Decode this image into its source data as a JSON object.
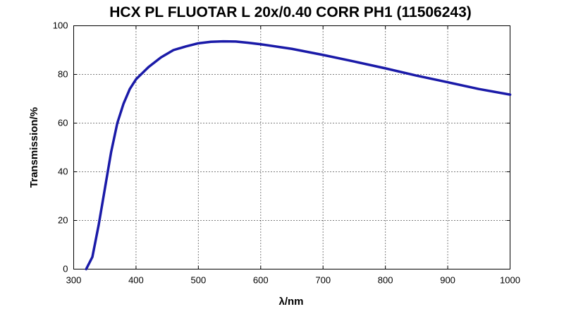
{
  "chart_data": {
    "type": "line",
    "title": "HCX PL FLUOTAR L 20x/0.40 CORR PH1 (11506243)",
    "xlabel": "λ/nm",
    "ylabel": "Transmission/%",
    "xlim": [
      300,
      1000
    ],
    "ylim": [
      0,
      100
    ],
    "xticks": [
      "300",
      "400",
      "500",
      "600",
      "700",
      "800",
      "900",
      "1000"
    ],
    "yticks": [
      "0",
      "20",
      "40",
      "60",
      "80",
      "100"
    ],
    "grid": true,
    "line_color": "#1a1aa8",
    "series": [
      {
        "x": [
          320,
          330,
          340,
          350,
          360,
          370,
          380,
          390,
          400,
          420,
          440,
          460,
          480,
          500,
          520,
          540,
          560,
          580,
          600,
          650,
          700,
          750,
          800,
          850,
          900,
          950,
          1000
        ],
        "y": [
          0,
          5,
          18,
          33,
          48,
          60,
          68,
          74,
          78,
          83,
          87,
          90,
          91.5,
          92.8,
          93.4,
          93.6,
          93.5,
          93.0,
          92.4,
          90.5,
          88.0,
          85.3,
          82.5,
          79.5,
          76.8,
          74.0,
          71.7
        ]
      }
    ]
  }
}
